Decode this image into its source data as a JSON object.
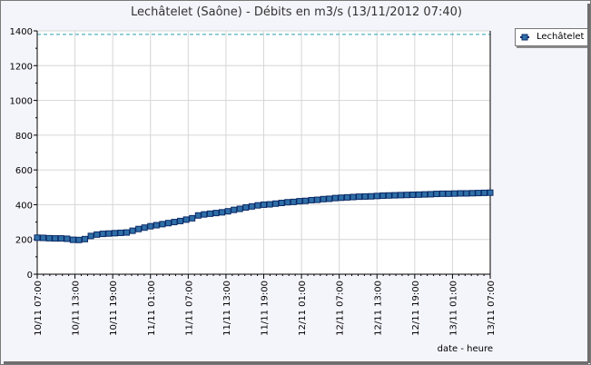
{
  "chart_data": {
    "type": "line",
    "title": "Lechâtelet (Saône) - Débits en m3/s (13/11/2012 07:40)",
    "xlabel": "date - heure",
    "ylabel": "",
    "ylim": [
      0,
      1400
    ],
    "yticks": [
      0,
      200,
      400,
      600,
      800,
      1000,
      1200,
      1400
    ],
    "xticks": [
      "10/11  07:00",
      "10/11  13:00",
      "10/11  19:00",
      "11/11  01:00",
      "11/11  07:00",
      "11/11  13:00",
      "11/11  19:00",
      "12/11  01:00",
      "12/11  07:00",
      "12/11  13:00",
      "12/11  19:00",
      "13/11  01:00",
      "13/11  07:00"
    ],
    "reference_line": {
      "value": 1380,
      "color": "#2a9db0"
    },
    "legend": {
      "position": "top-right"
    },
    "grid": true,
    "series": [
      {
        "name": "Lechâtelet",
        "color": "#0b2a66",
        "marker_color": "#2f6fa8",
        "values": [
          210,
          209,
          207,
          206,
          206,
          204,
          198,
          197,
          202,
          220,
          228,
          232,
          234,
          236,
          238,
          240,
          250,
          260,
          268,
          276,
          282,
          288,
          294,
          300,
          306,
          314,
          322,
          338,
          344,
          348,
          352,
          356,
          362,
          370,
          376,
          384,
          390,
          396,
          400,
          402,
          406,
          410,
          414,
          416,
          420,
          422,
          426,
          428,
          432,
          434,
          438,
          440,
          442,
          444,
          446,
          447,
          448,
          450,
          452,
          453,
          454,
          455,
          456,
          457,
          458,
          459,
          460,
          462,
          463,
          463,
          464,
          465,
          465,
          466,
          467,
          468,
          469
        ]
      }
    ]
  }
}
